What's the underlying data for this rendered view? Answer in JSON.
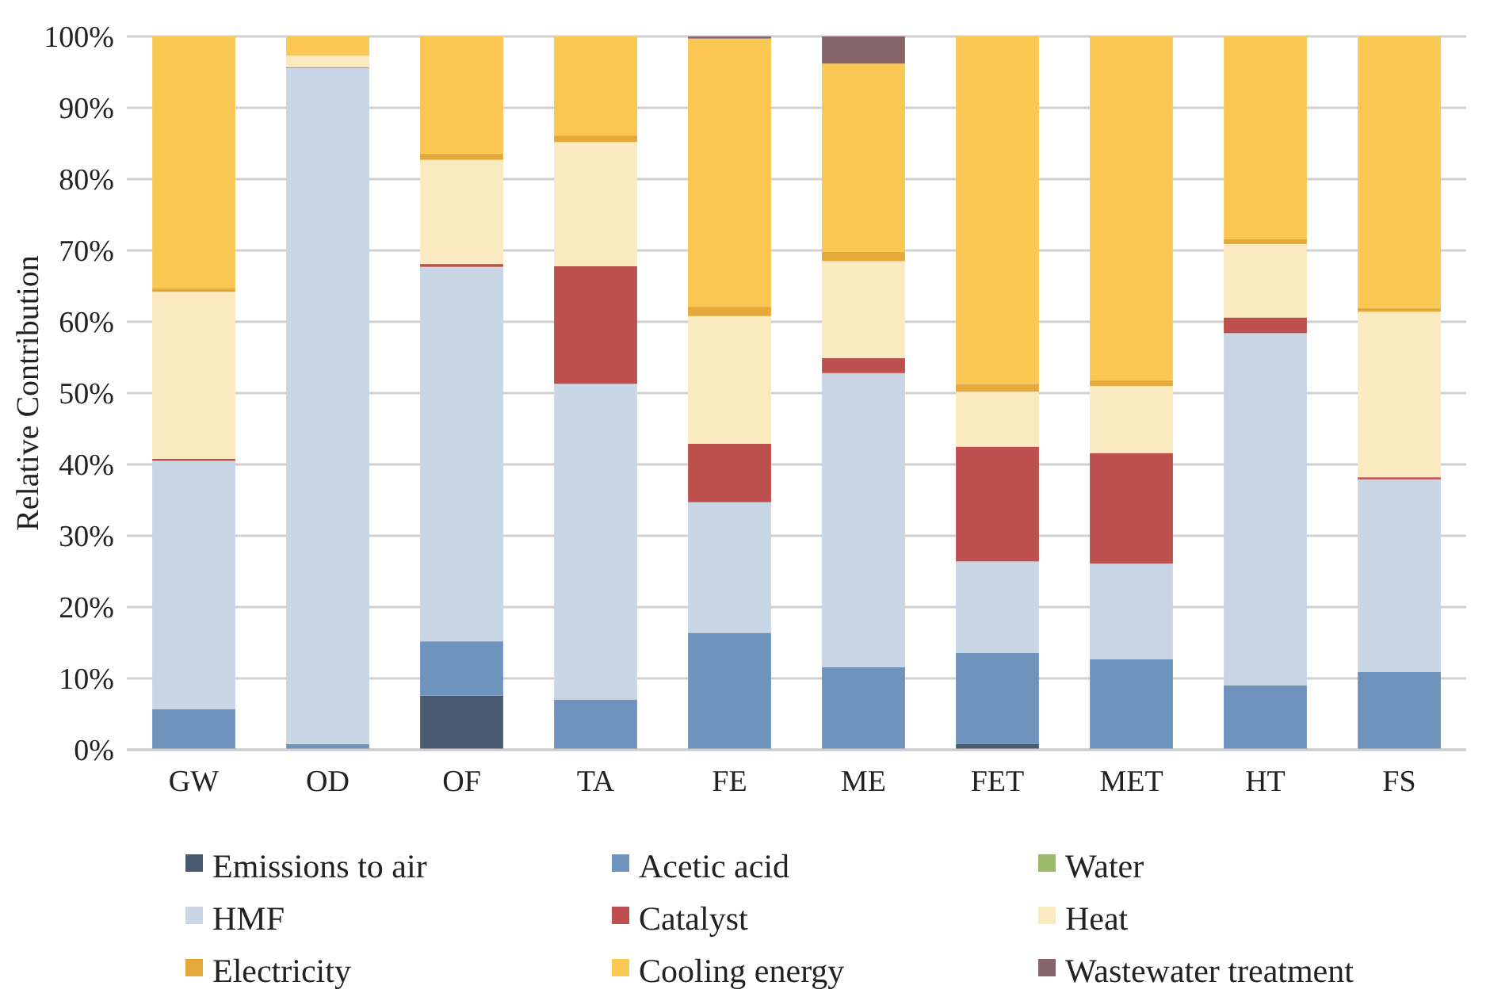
{
  "chart_data": {
    "type": "bar",
    "stacked": true,
    "ylabel": "Relative Contribution",
    "categories": [
      "GW",
      "OD",
      "OF",
      "TA",
      "FE",
      "ME",
      "FET",
      "MET",
      "HT",
      "FS"
    ],
    "ylim": [
      0,
      100
    ],
    "yticks": [
      {
        "value": 0,
        "label": "0%"
      },
      {
        "value": 10,
        "label": "10%"
      },
      {
        "value": 20,
        "label": "20%"
      },
      {
        "value": 30,
        "label": "30%"
      },
      {
        "value": 40,
        "label": "40%"
      },
      {
        "value": 50,
        "label": "50%"
      },
      {
        "value": 60,
        "label": "60%"
      },
      {
        "value": 70,
        "label": "70%"
      },
      {
        "value": 80,
        "label": "80%"
      },
      {
        "value": 90,
        "label": "90%"
      },
      {
        "value": 100,
        "label": "100%"
      }
    ],
    "grid": "y",
    "legend": "bottom",
    "series": [
      {
        "name": "Emissions to air",
        "color": "#4a5a70",
        "values": [
          0,
          0,
          7.6,
          0,
          0,
          0,
          0.8,
          0,
          0,
          0
        ]
      },
      {
        "name": "Acetic acid",
        "color": "#6e93bc",
        "values": [
          5.7,
          0.8,
          7.6,
          7.0,
          16.4,
          11.6,
          12.8,
          12.7,
          9.0,
          10.9
        ]
      },
      {
        "name": "Water",
        "color": "#9bbb6a",
        "values": [
          0,
          0,
          0,
          0,
          0,
          0,
          0,
          0,
          0,
          0
        ]
      },
      {
        "name": "HMF",
        "color": "#c9d6e6",
        "values": [
          34.8,
          94.8,
          52.5,
          44.3,
          18.3,
          41.2,
          12.8,
          13.4,
          49.4,
          27.0
        ]
      },
      {
        "name": "Catalyst",
        "color": "#bd504e",
        "values": [
          0.3,
          0.1,
          0.4,
          16.5,
          8.2,
          2.1,
          16.1,
          15.5,
          2.2,
          0.3
        ]
      },
      {
        "name": "Heat",
        "color": "#fbe9bf",
        "values": [
          23.4,
          1.6,
          14.6,
          17.4,
          17.9,
          13.6,
          7.7,
          9.4,
          10.3,
          23.2
        ]
      },
      {
        "name": "Electricity",
        "color": "#e5a83a",
        "values": [
          0.5,
          0,
          0.9,
          0.9,
          1.3,
          1.3,
          1.1,
          0.8,
          0.7,
          0.5
        ]
      },
      {
        "name": "Cooling energy",
        "color": "#fac852",
        "values": [
          35.3,
          2.7,
          16.4,
          13.9,
          37.6,
          26.4,
          48.7,
          48.2,
          28.4,
          38.1
        ]
      },
      {
        "name": "Wastewater treatment",
        "color": "#87636a",
        "values": [
          0,
          0,
          0,
          0,
          0.3,
          3.8,
          0,
          0,
          0,
          0
        ]
      }
    ]
  }
}
